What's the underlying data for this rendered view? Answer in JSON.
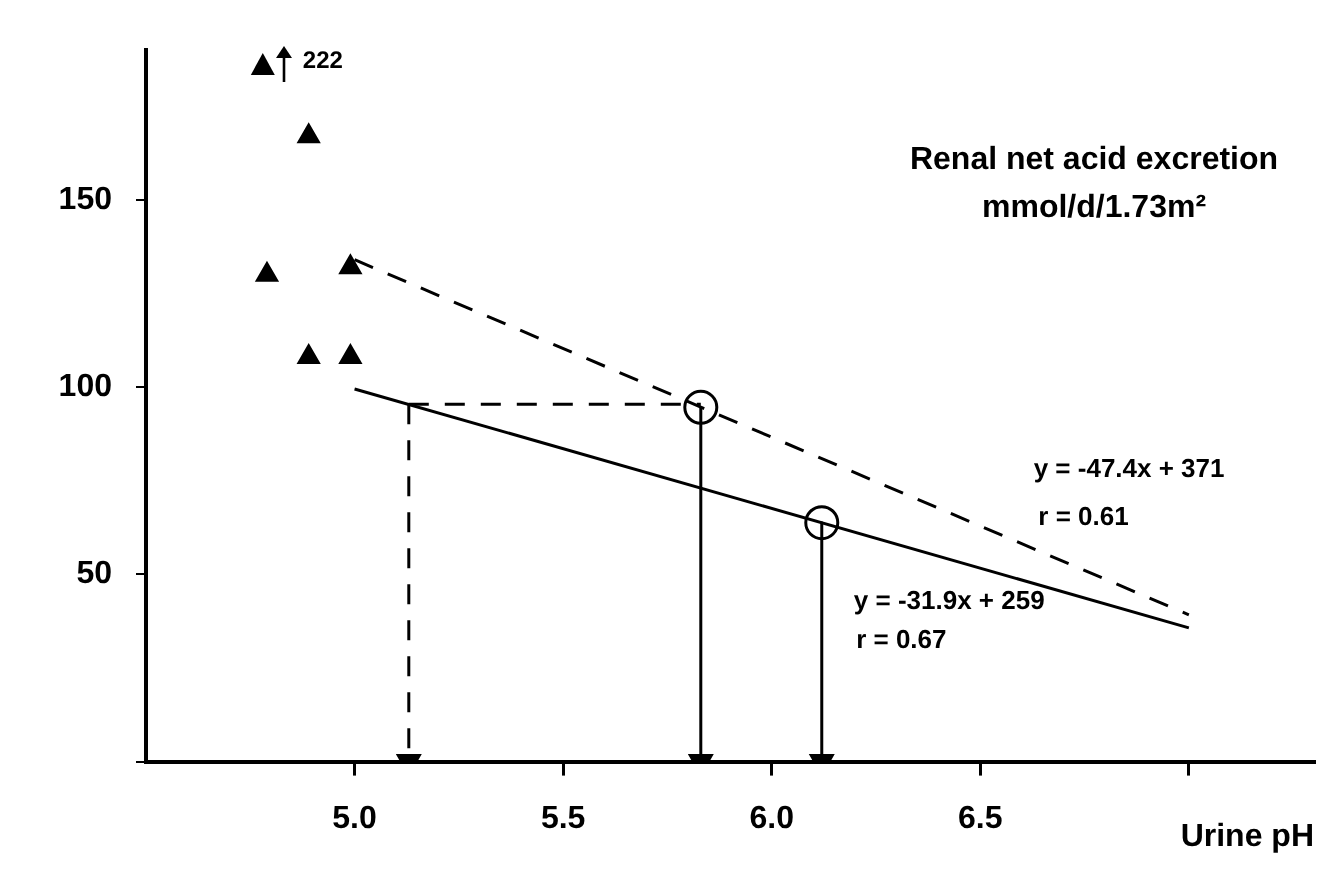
{
  "chart_data": {
    "type": "scatter",
    "ylabel": "Renal net acid excretion\nmmol/d/1.73m²",
    "xlabel": "Urine pH",
    "xlim": [
      4.5,
      7.3
    ],
    "xticks": [
      {
        "value": 5,
        "label": "5.0"
      },
      {
        "value": 5.5,
        "label": "5.5"
      },
      {
        "value": 6,
        "label": "6.0"
      },
      {
        "value": 6.5,
        "label": "6.5"
      },
      {
        "value": 7,
        "label": null
      }
    ],
    "ylim": [
      0,
      190
    ],
    "yticks": [
      {
        "value": 0,
        "label": null
      },
      50,
      100,
      150
    ],
    "grid": false,
    "legend": false,
    "series": [
      {
        "type": "scatter",
        "marker": "triangle",
        "color": "#000000",
        "x": [
          4.89,
          4.79,
          4.99,
          4.89,
          4.99
        ],
        "values": [
          167,
          130,
          132,
          108,
          108
        ]
      },
      {
        "type": "line",
        "line_style": "solid",
        "marker": "none",
        "color": "#000000",
        "x": [
          5.0,
          7.0
        ],
        "values": [
          99.5,
          35.7
        ]
      },
      {
        "type": "line",
        "line_style": "dashed",
        "marker": "none",
        "color": "#000000",
        "x": [
          5.0,
          7.0
        ],
        "values": [
          134,
          39.2
        ]
      },
      {
        "type": "scatter",
        "marker": "circle",
        "color": "#000000",
        "x": [
          5.83,
          6.12
        ],
        "values": [
          94.6,
          63.8
        ]
      },
      {
        "type": "line",
        "line_style": "dashed",
        "marker": "none",
        "color": "#000000",
        "x": [
          5.13,
          5.83
        ],
        "values": [
          95.4,
          95.4
        ]
      },
      {
        "type": "line",
        "line_style": "dashed",
        "marker": "triangle",
        "color": "#000000",
        "x": [
          5.13,
          5.13
        ],
        "values": [
          95.4,
          0
        ]
      },
      {
        "type": "line",
        "line_style": "solid",
        "marker": "triangle",
        "color": "#000000",
        "x": [
          5.83,
          5.83
        ],
        "values": [
          94.6,
          0
        ]
      },
      {
        "type": "line",
        "line_style": "solid",
        "marker": "triangle",
        "color": "#000000",
        "x": [
          6.12,
          6.12
        ],
        "values": [
          63.8,
          0
        ]
      }
    ],
    "annotations": [
      {
        "text": "222",
        "x": 4.78,
        "y": 186
      },
      "y = -47.4x + 371",
      "r = 0.61",
      "y = -31.9x + 259",
      "r = 0.67"
    ]
  }
}
